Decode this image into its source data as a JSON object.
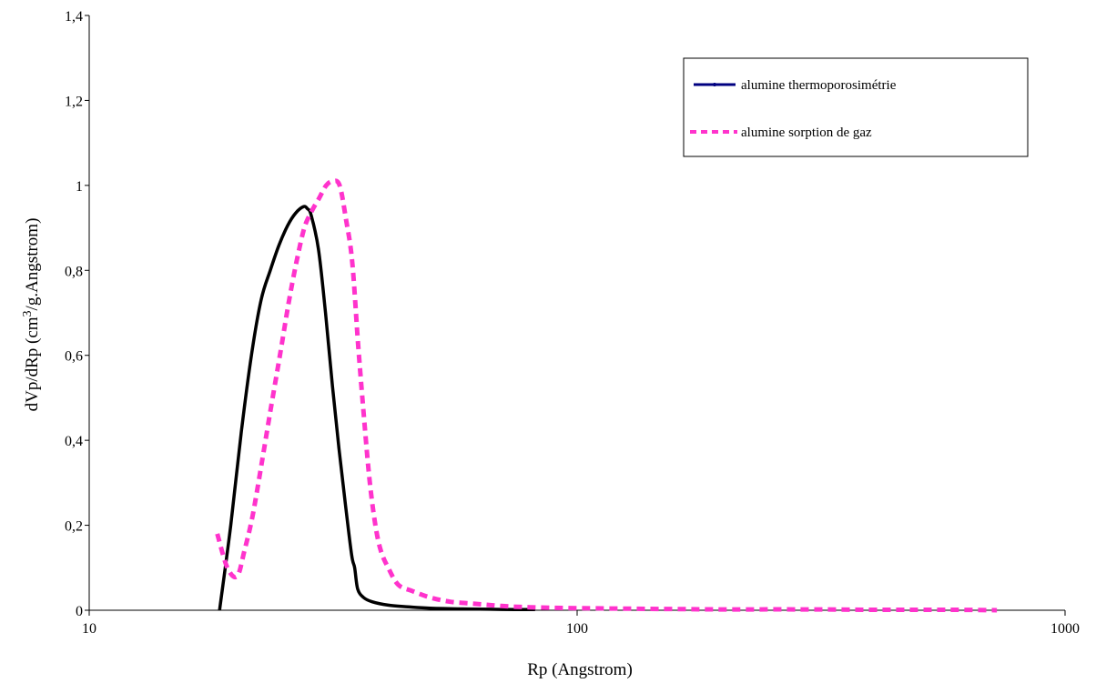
{
  "chart_data": {
    "type": "line",
    "xscale": "log",
    "xlim": [
      10,
      1000
    ],
    "ylim": [
      0,
      1.4
    ],
    "xticks": [
      "10",
      "100",
      "1000"
    ],
    "yticks": [
      "0",
      "0,2",
      "0,4",
      "0,6",
      "0,8",
      "1",
      "1,2",
      "1,4"
    ],
    "xlabel": "Rp (Angstrom)",
    "ylabel_main": "dVp/dRp (cm",
    "ylabel_sup": "3",
    "ylabel_tail": "/g.Angstrom)",
    "grid": false,
    "legend_position": "top-right",
    "series": [
      {
        "name": "alumine thermoporosimétrie",
        "color": "#000000",
        "legend_color": "#000080",
        "style": "solid",
        "x": [
          18.5,
          19.5,
          20.5,
          21.5,
          22.5,
          23.5,
          24.5,
          25.5,
          26.5,
          27.5,
          28.0,
          28.5,
          29.5,
          30.5,
          31.5,
          32.5,
          33.5,
          34.5,
          35.0,
          35.5,
          36.5,
          38,
          41,
          45,
          50,
          60,
          70,
          82
        ],
        "y": [
          0.0,
          0.2,
          0.42,
          0.6,
          0.73,
          0.8,
          0.86,
          0.905,
          0.935,
          0.95,
          0.945,
          0.93,
          0.85,
          0.7,
          0.53,
          0.38,
          0.25,
          0.13,
          0.1,
          0.05,
          0.03,
          0.02,
          0.012,
          0.008,
          0.005,
          0.003,
          0.002,
          0.0015
        ]
      },
      {
        "name": "alumine sorption de gaz",
        "color": "#ff33cc",
        "legend_color": "#ff33cc",
        "style": "dashed",
        "x": [
          18.3,
          19.2,
          20.1,
          20.8,
          21.6,
          22.6,
          23.6,
          24.6,
          25.6,
          26.6,
          27.6,
          28.6,
          29.6,
          30.6,
          31.6,
          32.6,
          33.6,
          34.6,
          35.6,
          36.6,
          37.6,
          38.6,
          39.6,
          41,
          43,
          46,
          50,
          55,
          62,
          70,
          80,
          100,
          150,
          200,
          300,
          400,
          500,
          600,
          725
        ],
        "y": [
          0.18,
          0.1,
          0.08,
          0.14,
          0.22,
          0.35,
          0.48,
          0.6,
          0.72,
          0.82,
          0.9,
          0.94,
          0.97,
          1.0,
          1.01,
          1.0,
          0.92,
          0.82,
          0.62,
          0.45,
          0.3,
          0.2,
          0.14,
          0.1,
          0.06,
          0.045,
          0.03,
          0.02,
          0.015,
          0.01,
          0.007,
          0.005,
          0.003,
          0.002,
          0.002,
          0.001,
          0.001,
          0.001,
          0.0
        ]
      }
    ]
  }
}
